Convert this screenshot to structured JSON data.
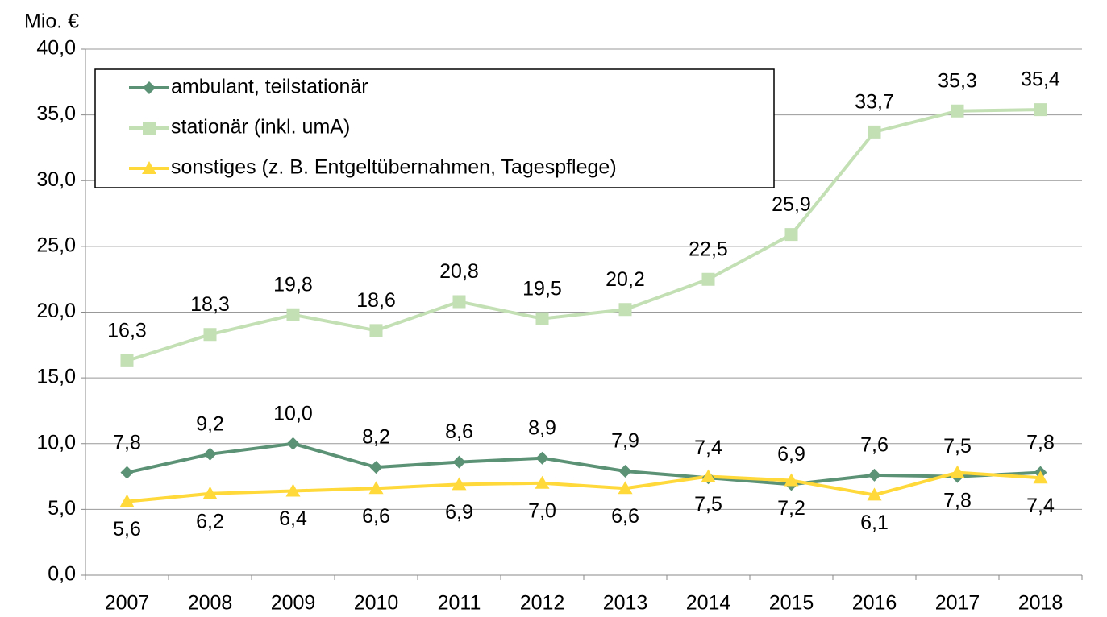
{
  "chart_data": {
    "type": "line",
    "y_axis_label": "Mio. €",
    "categories": [
      "2007",
      "2008",
      "2009",
      "2010",
      "2011",
      "2012",
      "2013",
      "2014",
      "2015",
      "2016",
      "2017",
      "2018"
    ],
    "series": [
      {
        "name": "ambulant, teilstationär",
        "color": "#5b9175",
        "marker": "diamond",
        "values": [
          7.8,
          9.2,
          10.0,
          8.2,
          8.6,
          8.9,
          7.9,
          7.4,
          6.9,
          7.6,
          7.5,
          7.8
        ],
        "value_labels": [
          "7,8",
          "9,2",
          "10,0",
          "8,2",
          "8,6",
          "8,9",
          "7,9",
          "7,4",
          "6,9",
          "7,6",
          "7,5",
          "7,8"
        ]
      },
      {
        "name": "stationär (inkl. umA)",
        "color": "#c3dfb4",
        "marker": "square",
        "values": [
          16.3,
          18.3,
          19.8,
          18.6,
          20.8,
          19.5,
          20.2,
          22.5,
          25.9,
          33.7,
          35.3,
          35.4
        ],
        "value_labels": [
          "16,3",
          "18,3",
          "19,8",
          "18,6",
          "20,8",
          "19,5",
          "20,2",
          "22,5",
          "25,9",
          "33,7",
          "35,3",
          "35,4"
        ]
      },
      {
        "name": "sonstiges (z. B. Entgeltübernahmen, Tagespflege)",
        "color": "#ffd83a",
        "marker": "triangle",
        "values": [
          5.6,
          6.2,
          6.4,
          6.6,
          6.9,
          7.0,
          6.6,
          7.5,
          7.2,
          6.1,
          7.8,
          7.4
        ],
        "value_labels": [
          "5,6",
          "6,2",
          "6,4",
          "6,6",
          "6,9",
          "7,0",
          "6,6",
          "7,5",
          "7,2",
          "6,1",
          "7,8",
          "7,4"
        ]
      }
    ],
    "ylim": [
      0,
      40
    ],
    "yticks": [
      {
        "value": 0,
        "label": "0,0"
      },
      {
        "value": 5,
        "label": "5,0"
      },
      {
        "value": 10,
        "label": "10,0"
      },
      {
        "value": 15,
        "label": "15,0"
      },
      {
        "value": 20,
        "label": "20,0"
      },
      {
        "value": 25,
        "label": "25,0"
      },
      {
        "value": 30,
        "label": "30,0"
      },
      {
        "value": 35,
        "label": "35,0"
      },
      {
        "value": 40,
        "label": "40,0"
      }
    ],
    "grid": true,
    "legend": "upper left"
  }
}
